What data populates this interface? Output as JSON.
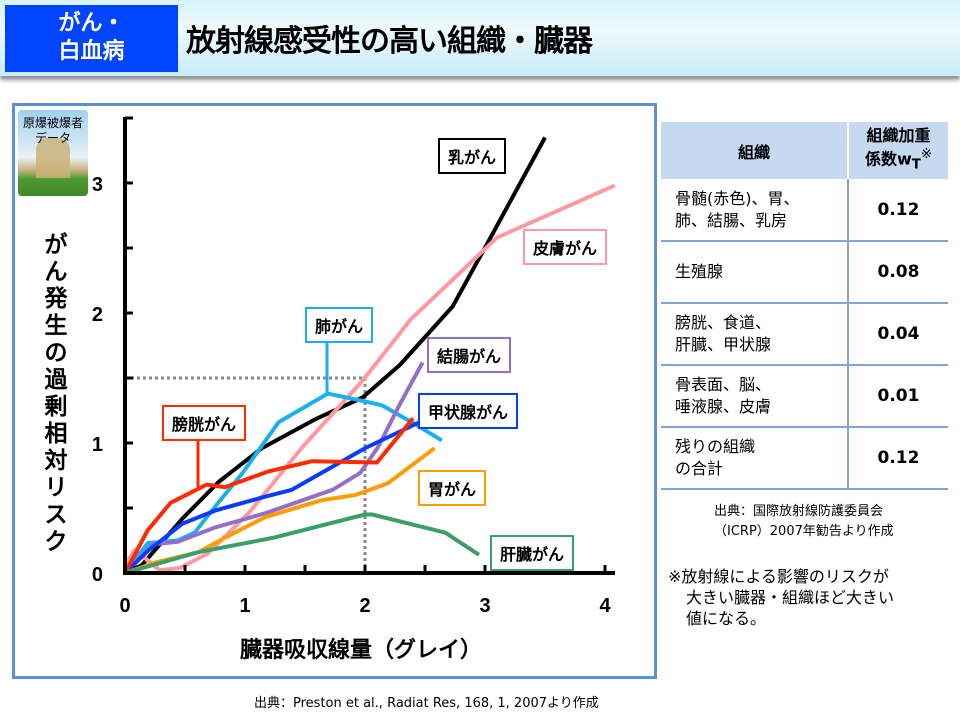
{
  "header": {
    "tag_line1": "がん・",
    "tag_line2": "白血病",
    "title": "放射線感受性の高い組織・臓器"
  },
  "icon": {
    "line1": "原爆被爆者",
    "line2": "データ",
    "name": "a-bomb-dome-icon"
  },
  "chart_data": {
    "type": "line",
    "xlabel": "臓器吸収線量（グレイ）",
    "ylabel": "がん発生の過剰相対リスク",
    "xlim": [
      0,
      4
    ],
    "ylim": [
      0,
      3.5
    ],
    "xticks": [
      "0",
      "1",
      "2",
      "3",
      "4"
    ],
    "yticks": [
      "0",
      "1",
      "2",
      "3"
    ],
    "reference": {
      "x": 2,
      "y": 1.5
    },
    "series": [
      {
        "name": "乳がん",
        "color": "#000000",
        "x": [
          0,
          0.14,
          0.48,
          0.78,
          1.14,
          1.58,
          1.98,
          2.29,
          2.73,
          3.07,
          3.5
        ],
        "y": [
          0,
          0.06,
          0.42,
          0.7,
          0.96,
          1.18,
          1.35,
          1.6,
          2.05,
          2.62,
          3.35
        ]
      },
      {
        "name": "皮膚がん",
        "color": "#ff99a0",
        "x": [
          0,
          0.08,
          0.29,
          0.46,
          0.69,
          1.03,
          1.48,
          1.98,
          2.38,
          3.1,
          4.08
        ],
        "y": [
          0.05,
          0.18,
          0.02,
          0.04,
          0.15,
          0.46,
          0.97,
          1.48,
          1.95,
          2.58,
          2.98
        ]
      },
      {
        "name": "肺がん",
        "color": "#19b0f0",
        "x": [
          0,
          0.19,
          0.44,
          0.58,
          0.75,
          0.98,
          1.28,
          1.69,
          2.0,
          2.14,
          2.39,
          2.64
        ],
        "y": [
          0,
          0.23,
          0.25,
          0.31,
          0.51,
          0.77,
          1.16,
          1.38,
          1.32,
          1.29,
          1.16,
          1.02
        ]
      },
      {
        "name": "結腸がん",
        "color": "#9370c8",
        "x": [
          0,
          0.23,
          0.44,
          0.75,
          1.17,
          1.73,
          1.96,
          2.11,
          2.28,
          2.48
        ],
        "y": [
          0,
          0.22,
          0.24,
          0.35,
          0.46,
          0.64,
          0.77,
          0.97,
          1.28,
          1.62
        ]
      },
      {
        "name": "甲状腺がん",
        "color": "#0a3cff",
        "x": [
          0,
          0.19,
          0.48,
          0.75,
          1.14,
          1.39,
          2.0,
          2.5
        ],
        "y": [
          0,
          0.17,
          0.38,
          0.48,
          0.58,
          0.64,
          0.96,
          1.18
        ]
      },
      {
        "name": "膀胱がん",
        "color": "#ff2a00",
        "x": [
          0,
          0.19,
          0.38,
          0.68,
          0.83,
          1.19,
          1.56,
          2.1,
          2.4
        ],
        "y": [
          0,
          0.33,
          0.54,
          0.68,
          0.66,
          0.78,
          0.86,
          0.85,
          1.19
        ]
      },
      {
        "name": "胃がん",
        "color": "#ff9c00",
        "x": [
          0,
          0.25,
          0.61,
          0.83,
          1.17,
          1.64,
          1.92,
          2.19,
          2.58
        ],
        "y": [
          0,
          0.08,
          0.16,
          0.27,
          0.43,
          0.56,
          0.6,
          0.69,
          0.96
        ]
      },
      {
        "name": "肝臓がん",
        "color": "#3a9f6a",
        "x": [
          0,
          0.61,
          1.23,
          2.0,
          2.06,
          2.67,
          2.95
        ],
        "y": [
          0,
          0.16,
          0.27,
          0.45,
          0.45,
          0.31,
          0.14
        ]
      }
    ]
  },
  "source": "出典：Preston et al., Radiat Res, 168, 1, 2007より作成",
  "table": {
    "headers": [
      "組織",
      "組織加重係数wT※"
    ],
    "header_col2_line1": "組織加重",
    "header_col2_line2": "係数w",
    "header_col2_sub": "T",
    "header_col2_mark": "※",
    "rows": [
      {
        "tissue_line1": "骨髄(赤色)、胃、",
        "tissue_line2": "肺、結腸、乳房",
        "value": "0.12"
      },
      {
        "tissue_line1": "生殖腺",
        "tissue_line2": "",
        "value": "0.08"
      },
      {
        "tissue_line1": "膀胱、食道、",
        "tissue_line2": "肝臓、甲状腺",
        "value": "0.04"
      },
      {
        "tissue_line1": "骨表面、脳、",
        "tissue_line2": "唾液腺、皮膚",
        "value": "0.01"
      },
      {
        "tissue_line1": "残りの組織",
        "tissue_line2": "の合計",
        "value": "0.12"
      }
    ],
    "source_line1": "出典：国際放射線防護委員会",
    "source_line2": "（ICRP）2007年勧告より作成"
  },
  "note": {
    "line1": "※放射線による影響のリスクが",
    "line2": "大きい臓器・組織ほど大きい",
    "line3": "値になる。"
  }
}
